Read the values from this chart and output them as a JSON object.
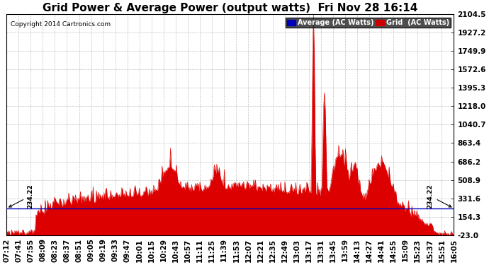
{
  "title": "Grid Power & Average Power (output watts)  Fri Nov 28 16:14",
  "copyright": "Copyright 2014 Cartronics.com",
  "legend_average": "Average (AC Watts)",
  "legend_grid": "Grid  (AC Watts)",
  "legend_avg_bg": "#0000bb",
  "legend_grid_bg": "#cc0000",
  "ymin": -23.0,
  "ymax": 2104.5,
  "yticks": [
    2104.5,
    1927.2,
    1749.9,
    1572.6,
    1395.3,
    1218.0,
    1040.7,
    863.4,
    686.2,
    508.9,
    331.6,
    154.3,
    -23.0
  ],
  "average_line": 234.22,
  "annotation_text": "234.22",
  "background_color": "#ffffff",
  "grid_color": "#bbbbbb",
  "fill_color": "#dd0000",
  "line_color": "#dd0000",
  "avg_line_color": "#0000bb",
  "title_fontsize": 11,
  "tick_fontsize": 7.5,
  "xtick_labels": [
    "07:12",
    "07:41",
    "07:55",
    "08:09",
    "08:23",
    "08:37",
    "08:51",
    "09:05",
    "09:19",
    "09:33",
    "09:47",
    "10:01",
    "10:15",
    "10:29",
    "10:43",
    "10:57",
    "11:11",
    "11:25",
    "11:39",
    "11:53",
    "12:07",
    "12:21",
    "12:35",
    "12:49",
    "13:03",
    "13:17",
    "13:31",
    "13:45",
    "13:59",
    "14:13",
    "14:27",
    "14:41",
    "14:55",
    "15:09",
    "15:23",
    "15:37",
    "15:51",
    "16:05"
  ]
}
